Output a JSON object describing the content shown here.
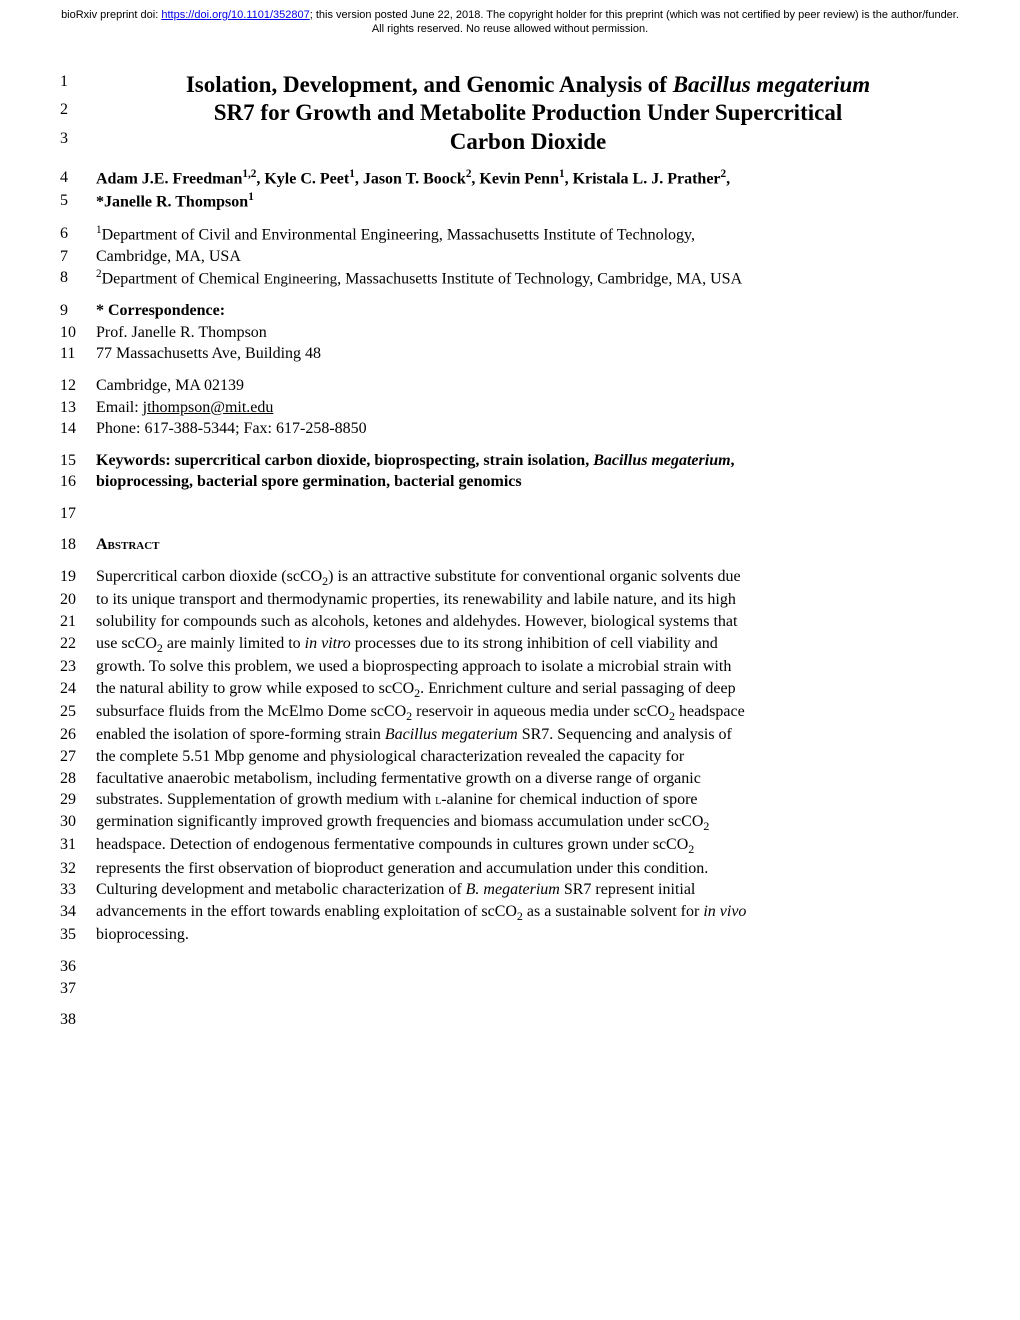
{
  "preprint": {
    "prefix": "bioRxiv preprint doi: ",
    "doi_url": "https://doi.org/10.1101/352807",
    "suffix": "; this version posted June 22, 2018. The copyright holder for this preprint (which was not certified by peer review) is the author/funder. All rights reserved. No reuse allowed without permission."
  },
  "title": {
    "l1": "Isolation, Development, and Genomic Analysis of ",
    "l1_italic": "Bacillus megaterium",
    "l2": "SR7 for Growth and Metabolite Production Under Supercritical",
    "l3": "Carbon Dioxide"
  },
  "authors": {
    "line1": "Adam J.E. Freedman",
    "a1_sup": "1,2",
    "a2": ", Kyle C. Peet",
    "a2_sup": "1",
    "a3": ", Jason T. Boock",
    "a3_sup": "2",
    "a4": ", Kevin Penn",
    "a4_sup": "1",
    "a5": ", Kristala L. J. Prather",
    "a5_sup": "2",
    "a5_end": ",",
    "line2_prefix": "*Janelle R. Thompson",
    "line2_sup": "1"
  },
  "affil": {
    "dept1_sup": "1",
    "dept1_a": "Department of Civil and Environmental Engineering, Massachusetts Institute of Technology,",
    "dept1_b": "Cambridge, MA, USA",
    "dept2_sup": "2",
    "dept2_a": "Department of Chemical ",
    "dept2_eng": "Engineering",
    "dept2_b": ", Massachusetts Institute of Technology, Cambridge, MA, USA"
  },
  "corr": {
    "head": "* Correspondence:",
    "name": "Prof. Janelle R. Thompson",
    "addr1": "77 Massachusetts Ave, Building 48",
    "addr2": "Cambridge, MA 02139",
    "email_label": "Email: ",
    "email": "jthompson@mit.edu",
    "phone": "Phone: 617-388-5344; Fax: 617-258-8850"
  },
  "keywords": {
    "l1a": "Keywords: supercritical carbon dioxide, bioprospecting, strain isolation, ",
    "l1b": "Bacillus megaterium",
    "l1c": ",",
    "l2": "bioprocessing, bacterial spore germination, bacterial genomics"
  },
  "abstract_head": "Abstract",
  "abs": {
    "l19a": "Supercritical carbon dioxide (scCO",
    "l19b": ") is an attractive substitute for conventional organic solvents due",
    "l20": "to its unique transport and thermodynamic properties, its renewability and labile nature, and its high",
    "l21": "solubility for compounds such as alcohols, ketones and aldehydes. However, biological systems that",
    "l22a": "use scCO",
    "l22b": " are mainly limited to ",
    "l22c": "in vitro",
    "l22d": " processes due to its strong inhibition of cell viability and",
    "l23": "growth. To solve this problem, we used a bioprospecting approach to isolate a microbial strain with",
    "l24a": "the natural ability to grow while exposed to scCO",
    "l24b": ". Enrichment culture and serial passaging of deep",
    "l25a": "subsurface fluids from the McElmo Dome scCO",
    "l25b": " reservoir in aqueous media under scCO",
    "l25c": " headspace",
    "l26a": "enabled the isolation of spore-forming strain ",
    "l26b": "Bacillus megaterium",
    "l26c": " SR7. Sequencing and analysis of",
    "l27": "the complete 5.51 Mbp genome and physiological characterization revealed the capacity for",
    "l28": "facultative anaerobic metabolism, including fermentative growth on a diverse range of organic",
    "l29a": "substrates. Supplementation of growth medium with ",
    "l29b": "l",
    "l29c": "-alanine for chemical induction of spore",
    "l30a": "germination significantly improved growth frequencies and biomass accumulation under scCO",
    "l31a": "headspace. Detection of endogenous fermentative compounds in cultures grown under scCO",
    "l32": "represents the first observation of bioproduct generation and accumulation under this condition.",
    "l33a": "Culturing development and metabolic characterization of ",
    "l33b": "B. megaterium",
    "l33c": " SR7 represent initial",
    "l34a": "advancements in the effort towards enabling exploitation of scCO",
    "l34b": " as a sustainable solvent for ",
    "l34c": "in vivo",
    "l35": "bioprocessing."
  },
  "line_numbers": {
    "n1": "1",
    "n2": "2",
    "n3": "3",
    "n4": "4",
    "n5": "5",
    "n6": "6",
    "n7": "7",
    "n8": "8",
    "n9": "9",
    "n10": "10",
    "n11": "11",
    "n12": "12",
    "n13": "13",
    "n14": "14",
    "n15": "15",
    "n16": "16",
    "n17": "17",
    "n18": "18",
    "n19": "19",
    "n20": "20",
    "n21": "21",
    "n22": "22",
    "n23": "23",
    "n24": "24",
    "n25": "25",
    "n26": "26",
    "n27": "27",
    "n28": "28",
    "n29": "29",
    "n30": "30",
    "n31": "31",
    "n32": "32",
    "n33": "33",
    "n34": "34",
    "n35": "35",
    "n36": "36",
    "n37": "37",
    "n38": "38"
  }
}
